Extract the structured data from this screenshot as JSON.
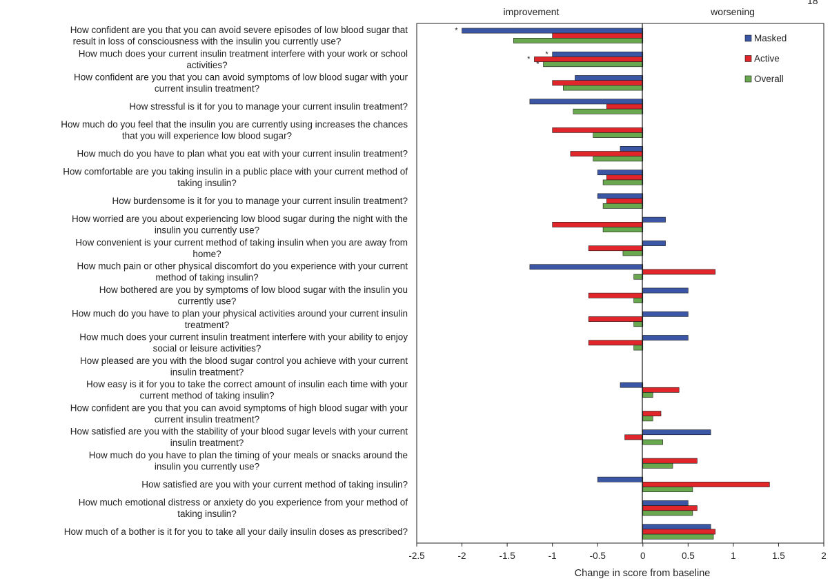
{
  "page_number": "18",
  "chart_data": {
    "type": "bar",
    "orientation": "horizontal",
    "xlabel": "Change in score from baseline",
    "xlim": [
      -2.5,
      2
    ],
    "xticks": [
      "-2.5",
      "-2",
      "-1.5",
      "-1",
      "-0.5",
      "0",
      "0.5",
      "1",
      "1.5",
      "2"
    ],
    "direction_labels": {
      "left": "improvement",
      "right": "worsening"
    },
    "legend_position": "top-right",
    "grid": false,
    "significance_marker": "*",
    "categories": [
      [
        "How confident are you that you can avoid severe episodes of low blood sugar that",
        "result in loss of consciousness with the insulin you currently use?"
      ],
      [
        "How much does your current insulin treatment interfere with your work or school",
        "activities?"
      ],
      [
        "How confident are you that you can avoid symptoms of low blood sugar with your",
        "current insulin treatment?"
      ],
      [
        "How stressful is it for you to manage your current insulin treatment?"
      ],
      [
        "How much do you feel that the insulin you are currently using increases the chances",
        "that you will experience low blood sugar?"
      ],
      [
        "How much do you have to plan what you eat with your current insulin treatment?"
      ],
      [
        "How comfortable are you taking insulin in a public place with your current method of",
        "taking insulin?"
      ],
      [
        "How burdensome is it for you to manage your current insulin treatment?"
      ],
      [
        "How worried are you about experiencing low blood sugar during the night with the",
        "insulin you currently use?"
      ],
      [
        "How convenient is your current method of taking insulin when you are away from",
        "home?"
      ],
      [
        "How much pain or other physical discomfort do you experience with your current",
        "method of taking insulin?"
      ],
      [
        "How bothered are you by symptoms of low blood sugar with the insulin you",
        "currently use?"
      ],
      [
        "How much do you have to plan your physical activities around your current insulin",
        "treatment?"
      ],
      [
        "How much does your current insulin treatment interfere with your ability to enjoy",
        "social or leisure activities?"
      ],
      [
        "How pleased are you with the blood sugar control you achieve with your current",
        "insulin treatment?"
      ],
      [
        "How easy is it for you to take the correct amount of insulin each time with your",
        "current method of taking insulin?"
      ],
      [
        "How confident are you that you can avoid symptoms of high blood sugar with your",
        "current insulin treatment?"
      ],
      [
        "How satisfied are you with the stability of your blood sugar levels with your current",
        "insulin treatment?"
      ],
      [
        "How much do you have to plan the timing of your meals or snacks around the",
        "insulin you currently use?"
      ],
      [
        "How satisfied are you with your current method of taking insulin?"
      ],
      [
        "How much emotional distress or anxiety do you experience from your method of",
        "taking insulin?"
      ],
      [
        "How much of a bother is it for you to take all your daily insulin doses as prescribed?"
      ]
    ],
    "series": [
      {
        "name": "Masked",
        "color": "#3a56a5",
        "values": [
          -2.0,
          -1.0,
          -0.75,
          -1.25,
          0,
          -0.25,
          -0.5,
          -0.5,
          0.25,
          0.25,
          -1.25,
          0.5,
          0.5,
          0.5,
          0,
          -0.25,
          0,
          0.75,
          0,
          -0.5,
          0.5,
          0.75
        ],
        "significant": [
          true,
          true,
          false,
          false,
          false,
          false,
          false,
          false,
          false,
          false,
          false,
          false,
          false,
          false,
          false,
          false,
          false,
          false,
          false,
          false,
          false,
          false
        ]
      },
      {
        "name": "Active",
        "color": "#e0252b",
        "values": [
          -1.0,
          -1.2,
          -1.0,
          -0.4,
          -1.0,
          -0.8,
          -0.4,
          -0.4,
          -1.0,
          -0.6,
          0.8,
          -0.6,
          -0.6,
          -0.6,
          0,
          0.4,
          0.2,
          -0.2,
          0.6,
          1.4,
          0.6,
          0.8
        ],
        "significant": [
          false,
          true,
          false,
          false,
          false,
          false,
          false,
          false,
          false,
          false,
          false,
          false,
          false,
          false,
          false,
          false,
          false,
          false,
          false,
          false,
          false,
          false
        ]
      },
      {
        "name": "Overall",
        "color": "#6aa84f",
        "values": [
          -1.43,
          -1.1,
          -0.88,
          -0.77,
          -0.55,
          -0.55,
          -0.44,
          -0.44,
          -0.44,
          -0.22,
          -0.1,
          -0.1,
          -0.1,
          -0.1,
          0,
          0.11,
          0.11,
          0.22,
          0.33,
          0.55,
          0.55,
          0.78
        ],
        "significant": [
          false,
          true,
          false,
          false,
          false,
          false,
          false,
          false,
          false,
          false,
          false,
          false,
          false,
          false,
          false,
          false,
          false,
          false,
          false,
          false,
          false,
          false
        ]
      }
    ]
  }
}
